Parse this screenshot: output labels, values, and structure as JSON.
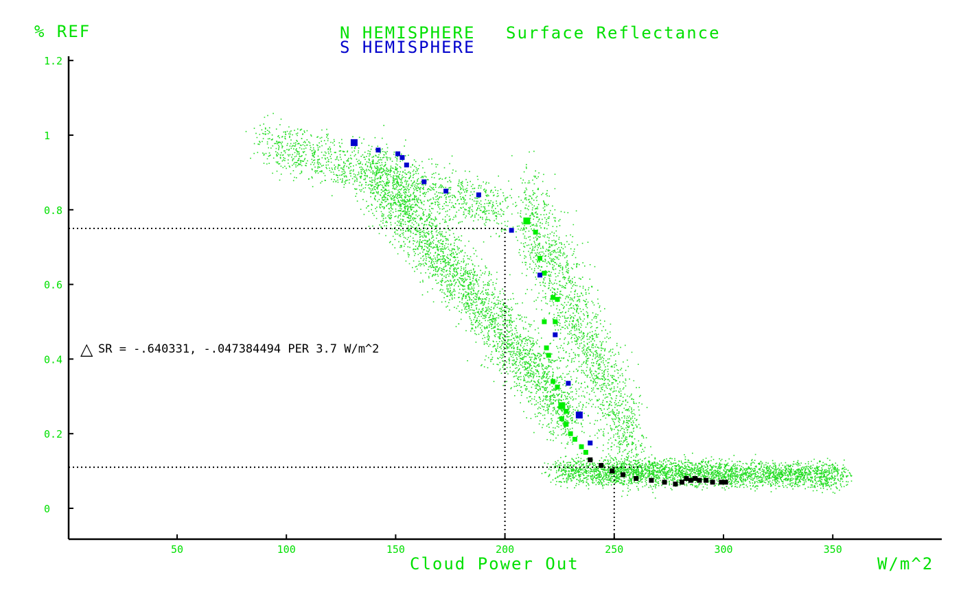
{
  "chart_data": {
    "type": "scatter",
    "title": "Surface Reflectance",
    "title_prefix_n": "N HEMISPHERE",
    "title_prefix_s": "S HEMISPHERE",
    "ylabel": "% REF",
    "xlabel": "Cloud Power Out",
    "xunit": "W/m^2",
    "xlim": [
      0,
      400
    ],
    "ylim": [
      -0.08,
      1.2
    ],
    "xticks": [
      50,
      100,
      150,
      200,
      250,
      300,
      350
    ],
    "yticks": [
      0,
      0.2,
      0.4,
      0.6,
      0.8,
      1,
      1.2
    ],
    "ytick_labels": [
      "0",
      "0.2",
      "0.4",
      "0.6",
      "0.8",
      "1",
      "1.2"
    ],
    "annotation": "SR = -.640331, -.047384494 PER 3.7 W/m^2",
    "annotation_symbol": "△",
    "reference_lines": {
      "horizontal_y": [
        0.75,
        0.11
      ],
      "vertical_x": [
        200,
        250
      ]
    },
    "colors": {
      "axis_text": "#00e000",
      "n_hemisphere": "#00ee00",
      "s_hemisphere": "#0000cc",
      "overlap": "#000000",
      "axis": "#000000"
    },
    "series": [
      {
        "name": "N HEMISPHERE",
        "color": "#00ee00",
        "marker": "square",
        "points": [
          [
            210,
            0.77
          ],
          [
            214,
            0.74
          ],
          [
            216,
            0.67
          ],
          [
            218,
            0.63
          ],
          [
            222,
            0.565
          ],
          [
            224,
            0.56
          ],
          [
            218,
            0.5
          ],
          [
            223,
            0.5
          ],
          [
            219,
            0.43
          ],
          [
            220,
            0.41
          ],
          [
            222,
            0.34
          ],
          [
            224,
            0.325
          ],
          [
            226,
            0.275
          ],
          [
            228,
            0.26
          ],
          [
            226,
            0.24
          ],
          [
            228,
            0.225
          ],
          [
            230,
            0.2
          ],
          [
            232,
            0.185
          ],
          [
            235,
            0.165
          ],
          [
            237,
            0.15
          ]
        ]
      },
      {
        "name": "S HEMISPHERE",
        "color": "#0000cc",
        "marker": "square",
        "points": [
          [
            131,
            0.98
          ],
          [
            142,
            0.96
          ],
          [
            151,
            0.95
          ],
          [
            153,
            0.94
          ],
          [
            155,
            0.92
          ],
          [
            163,
            0.875
          ],
          [
            173,
            0.85
          ],
          [
            188,
            0.84
          ],
          [
            203,
            0.745
          ],
          [
            216,
            0.625
          ],
          [
            223,
            0.465
          ],
          [
            229,
            0.335
          ],
          [
            234,
            0.25
          ],
          [
            239,
            0.175
          ]
        ]
      },
      {
        "name": "",
        "color": "#000000",
        "marker": "square",
        "points": [
          [
            239,
            0.13
          ],
          [
            244,
            0.115
          ],
          [
            249,
            0.1
          ],
          [
            254,
            0.09
          ],
          [
            260,
            0.08
          ],
          [
            267,
            0.075
          ],
          [
            273,
            0.07
          ],
          [
            278,
            0.065
          ],
          [
            281,
            0.07
          ],
          [
            283,
            0.08
          ],
          [
            285,
            0.075
          ],
          [
            287,
            0.08
          ],
          [
            289,
            0.075
          ],
          [
            292,
            0.075
          ],
          [
            295,
            0.07
          ],
          [
            299,
            0.07
          ],
          [
            301,
            0.07
          ]
        ]
      }
    ],
    "cloud": {
      "description_free": true,
      "color": "#22dd22",
      "bands": [
        {
          "x": [
            90,
            200
          ],
          "y_center_start": 0.98,
          "y_center_end": 0.8,
          "spread": 0.07,
          "count": 1400
        },
        {
          "x": [
            140,
            230
          ],
          "y_center_start": 0.9,
          "y_center_end": 0.25,
          "spread": 0.1,
          "count": 3000
        },
        {
          "x": [
            210,
            260
          ],
          "y_center_start": 0.8,
          "y_center_end": 0.15,
          "spread": 0.15,
          "count": 1800
        },
        {
          "x": [
            225,
            355
          ],
          "y_center_start": 0.1,
          "y_center_end": 0.09,
          "spread": 0.035,
          "count": 3200
        }
      ]
    }
  }
}
